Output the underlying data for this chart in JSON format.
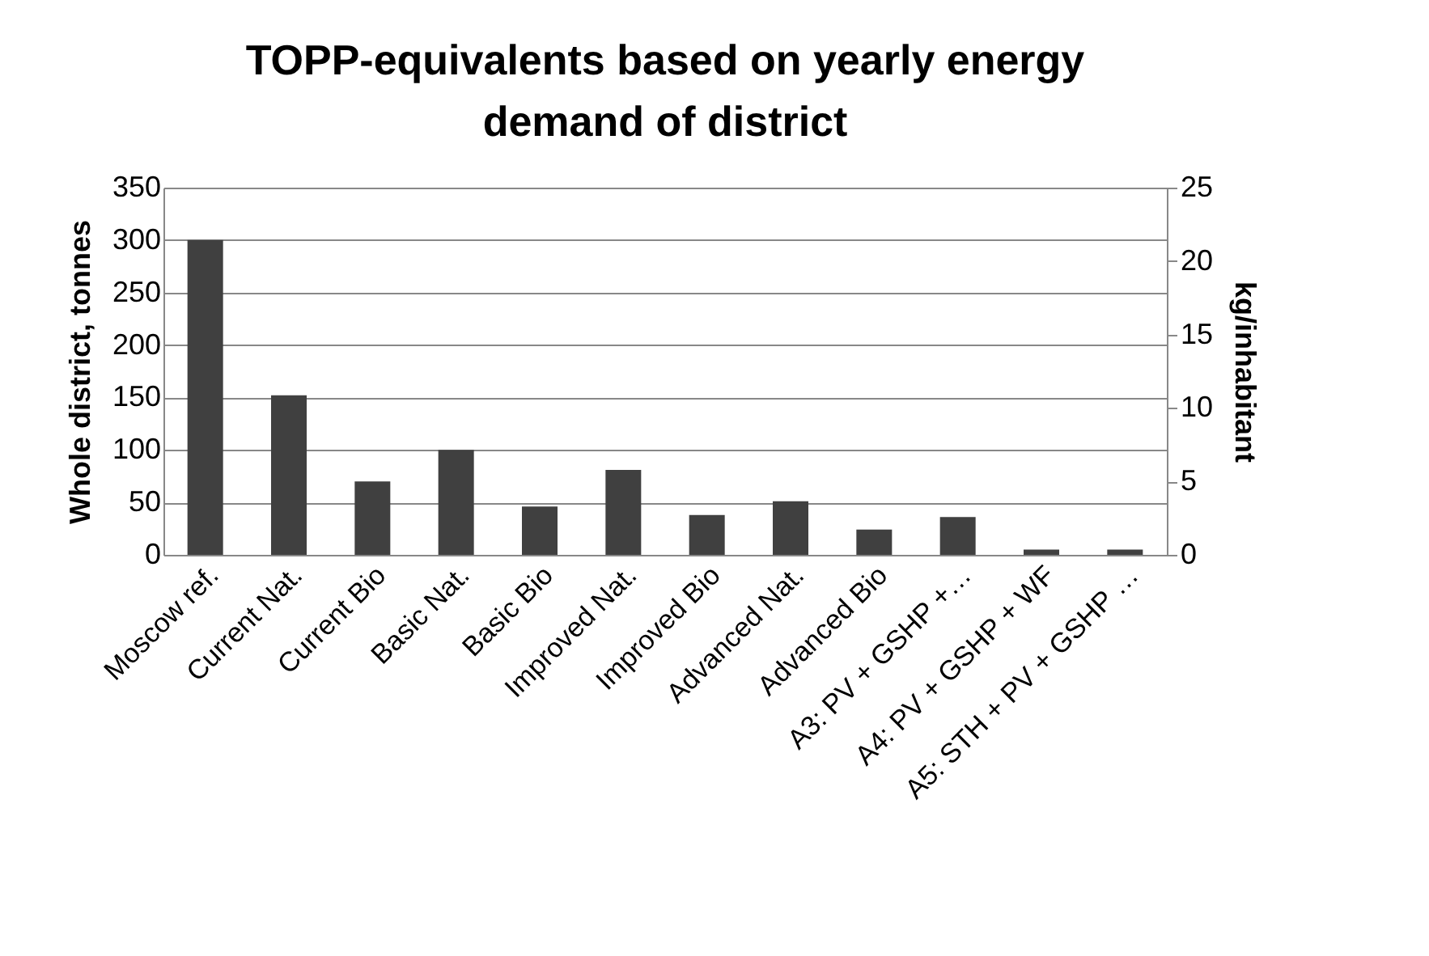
{
  "chart_data": {
    "type": "bar",
    "title": [
      "TOPP-equivalents based on yearly energy",
      "demand of district"
    ],
    "ylabel": "Whole district, tonnes",
    "y2label": "kg/inhabitant",
    "categories": [
      "Moscow ref.",
      "Current Nat.",
      "Current Bio",
      "Basic Nat.",
      "Basic Bio",
      "Improved Nat.",
      "Improved Bio",
      "Advanced Nat.",
      "Advanced Bio",
      "A3: PV + GSHP +…",
      "A4: PV + GSHP + WF",
      "A5: STH + PV + GSHP …"
    ],
    "series": [
      {
        "color": "#404040",
        "values": [
          300,
          152,
          70,
          100,
          46,
          81,
          38,
          51,
          24,
          36,
          5,
          5
        ]
      }
    ],
    "ylim": [
      0,
      350
    ],
    "yticks": [
      0,
      50,
      100,
      150,
      200,
      250,
      300,
      350
    ],
    "y2lim": [
      0,
      25
    ],
    "y2ticks": [
      0,
      5,
      10,
      15,
      20,
      25
    ],
    "grid": "y"
  }
}
